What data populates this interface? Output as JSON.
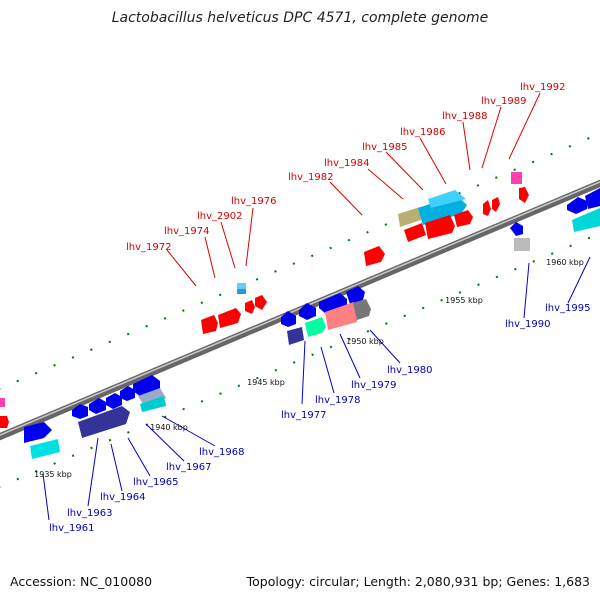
{
  "title": "Lactobacillus helveticus DPC 4571, complete genome",
  "footer": {
    "accession": "Accession: NC_010080",
    "topology": "Topology: circular; Length: 2,080,931 bp; Genes: 1,683"
  },
  "scale_labels": [
    "1935 kbp",
    "1940 kbp",
    "1945 kbp",
    "1950 kbp",
    "1955 kbp",
    "1960 kbp"
  ],
  "labels_top": [
    "lhv_1972",
    "lhv_1974",
    "lhv_2902",
    "lhv_1976",
    "lhv_1982",
    "lhv_1984",
    "lhv_1985",
    "lhv_1986",
    "lhv_1988",
    "lhv_1989",
    "lhv_1992"
  ],
  "labels_bottom": [
    "lhv_1961",
    "lhv_1963",
    "lhv_1964",
    "lhv_1965",
    "lhv_1967",
    "lhv_1968",
    "lhv_1977",
    "lhv_1978",
    "lhv_1979",
    "lhv_1980",
    "lhv_1990",
    "lhv_1995"
  ],
  "colors": {
    "red": "#ff0000",
    "blue": "#0000ee",
    "cyan": "#00e0e0",
    "navy": "#333399",
    "pink": "#ff80a0",
    "gray": "#bbbbbb",
    "olive": "#b8b070",
    "green": "#00ffa0",
    "magenta": "#ff40b0",
    "label_red": "#d40000",
    "label_blue": "#0000b0",
    "tick_green": "#007700"
  }
}
